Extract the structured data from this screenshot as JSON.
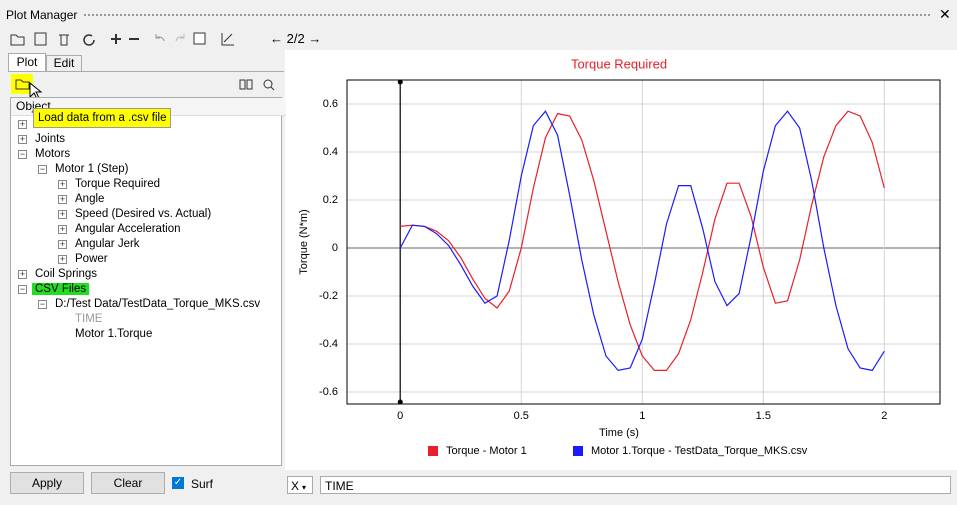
{
  "window": {
    "title": "Plot Manager"
  },
  "toolbar": {
    "page": "2/2"
  },
  "tabs": [
    "Plot",
    "Edit"
  ],
  "tooltip": "Load data from a .csv file",
  "tree": {
    "header": "Object",
    "items": [
      "Joints",
      "Motors",
      "Motor 1 (Step)",
      "Torque Required",
      "Angle",
      "Speed (Desired vs. Actual)",
      "Angular Acceleration",
      "Angular Jerk",
      "Power",
      "Coil Springs",
      "CSV Files",
      "D:/Test Data/TestData_Torque_MKS.csv",
      "TIME",
      "Motor 1.Torque"
    ]
  },
  "buttons": {
    "apply": "Apply",
    "clear": "Clear",
    "surf": "Surf"
  },
  "xbar": {
    "axis": "X",
    "field": "TIME"
  },
  "chart_data": {
    "type": "line",
    "title": "Torque Required",
    "x_label": "Time (s)",
    "y_label": "Torque (N*m)",
    "x": [
      0,
      0.05,
      0.1,
      0.15,
      0.2,
      0.25,
      0.3,
      0.35,
      0.4,
      0.45,
      0.5,
      0.55,
      0.6,
      0.65,
      0.7,
      0.75,
      0.8,
      0.85,
      0.9,
      0.95,
      1.0,
      1.05,
      1.1,
      1.15,
      1.2,
      1.25,
      1.3,
      1.35,
      1.4,
      1.45,
      1.5,
      1.55,
      1.6,
      1.65,
      1.7,
      1.75,
      1.8,
      1.85,
      1.9,
      1.95,
      2.0
    ],
    "series": [
      {
        "name": "Torque - Motor 1",
        "color": "#e8202a",
        "values": [
          0.09,
          0.095,
          0.09,
          0.07,
          0.03,
          -0.04,
          -0.13,
          -0.21,
          -0.25,
          -0.18,
          0.0,
          0.25,
          0.46,
          0.56,
          0.55,
          0.45,
          0.28,
          0.07,
          -0.14,
          -0.32,
          -0.45,
          -0.51,
          -0.51,
          -0.44,
          -0.3,
          -0.1,
          0.12,
          0.27,
          0.27,
          0.13,
          -0.08,
          -0.23,
          -0.22,
          -0.05,
          0.18,
          0.38,
          0.51,
          0.57,
          0.55,
          0.44,
          0.25
        ]
      },
      {
        "name": "Motor 1.Torque - TestData_Torque_MKS.csv",
        "color": "#1a1aff",
        "values": [
          0.0,
          0.095,
          0.09,
          0.06,
          0.01,
          -0.07,
          -0.16,
          -0.23,
          -0.2,
          0.03,
          0.3,
          0.51,
          0.57,
          0.47,
          0.22,
          -0.05,
          -0.28,
          -0.45,
          -0.51,
          -0.5,
          -0.38,
          -0.15,
          0.1,
          0.26,
          0.26,
          0.08,
          -0.14,
          -0.24,
          -0.19,
          0.05,
          0.32,
          0.51,
          0.57,
          0.5,
          0.28,
          0.0,
          -0.24,
          -0.42,
          -0.5,
          -0.51,
          -0.43
        ]
      }
    ],
    "xlim": [
      -0.22,
      2.23
    ],
    "ylim": [
      -0.65,
      0.7
    ],
    "xticks": [
      0,
      0.5,
      1,
      1.5,
      2
    ],
    "yticks": [
      -0.6,
      -0.4,
      -0.2,
      0,
      0.2,
      0.4,
      0.6
    ],
    "grid": true,
    "legend": "bottom"
  }
}
